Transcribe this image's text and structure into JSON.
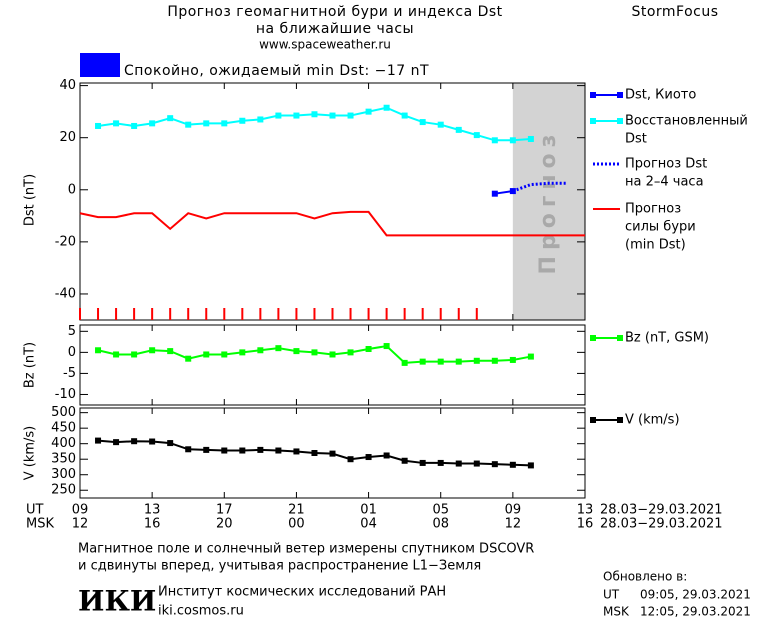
{
  "header": {
    "title_lines": [
      "Прогноз геомагнитной бури и индекса Dst",
      "на ближайшие часы"
    ],
    "site": "www.spaceweather.ru",
    "brand": "StormFocus"
  },
  "status": {
    "text": "Спокойно, ожидаемый min Dst: −17 nT",
    "color": "#0000ff"
  },
  "chart_data": [
    {
      "type": "line",
      "y_label": "Dst (nT)",
      "xlim": [
        0,
        28
      ],
      "ylim": [
        -50,
        41
      ],
      "yticks": [
        -40,
        -20,
        0,
        20,
        40
      ],
      "forecast_region": {
        "xlim": [
          24,
          28
        ],
        "label": "Прогноз",
        "color": "#d3d3d3"
      },
      "markers_x": [
        0,
        1,
        2,
        3,
        4,
        5,
        6,
        7,
        8,
        9,
        10,
        11,
        12,
        13,
        14,
        15,
        16,
        17,
        18,
        19,
        20,
        21,
        22
      ],
      "markers_color": "#ff0000",
      "series": [
        {
          "name": [
            "Dst, Киото"
          ],
          "color": "#0000ff",
          "marker": "square",
          "dash": "solid",
          "x": [
            23,
            24
          ],
          "values": [
            -1.5,
            -0.5
          ]
        },
        {
          "name": [
            "Восстановленный",
            "Dst"
          ],
          "color": "#00ffff",
          "marker": "square",
          "dash": "solid",
          "x": [
            1,
            2,
            3,
            4,
            5,
            6,
            7,
            8,
            9,
            10,
            11,
            12,
            13,
            14,
            15,
            16,
            17,
            18,
            19,
            20,
            21,
            22,
            23,
            24,
            25
          ],
          "values": [
            24.5,
            25.5,
            24.5,
            25.5,
            27.5,
            25,
            25.5,
            25.5,
            26.5,
            27,
            28.5,
            28.5,
            29,
            28.5,
            28.5,
            30,
            31.5,
            28.5,
            26,
            25,
            23,
            21,
            19,
            19,
            19.5
          ]
        },
        {
          "name": [
            "Прогноз Dst",
            "на 2–4 часа"
          ],
          "color": "#0000ff",
          "marker": "none",
          "dash": "dotted",
          "x": [
            24,
            25,
            26,
            27
          ],
          "values": [
            -0.5,
            2,
            2.5,
            2.5
          ]
        },
        {
          "name": [
            "Прогноз",
            "силы бури",
            "(min Dst)"
          ],
          "color": "#ff0000",
          "marker": "none",
          "dash": "solid",
          "x": [
            0,
            1,
            2,
            3,
            4,
            5,
            6,
            7,
            8,
            9,
            10,
            11,
            12,
            13,
            14,
            15,
            16,
            17,
            18,
            19,
            20,
            21,
            22,
            23,
            24,
            25,
            26,
            27,
            28
          ],
          "values": [
            -9,
            -10.5,
            -10.5,
            -9,
            -9,
            -15,
            -9,
            -11,
            -9,
            -9,
            -9,
            -9,
            -9,
            -11,
            -9,
            -8.5,
            -8.5,
            -17.5,
            -17.5,
            -17.5,
            -17.5,
            -17.5,
            -17.5,
            -17.5,
            -17.5,
            -17.5,
            -17.5,
            -17.5,
            -17.5
          ]
        }
      ]
    },
    {
      "type": "line",
      "y_label": "Bz (nT)",
      "xlim": [
        0,
        28
      ],
      "ylim": [
        -12.5,
        6.5
      ],
      "yticks": [
        -10,
        -5,
        0,
        5
      ],
      "series": [
        {
          "name": [
            "Bz (nT, GSM)"
          ],
          "color": "#00ff00",
          "marker": "square",
          "dash": "solid",
          "x": [
            1,
            2,
            3,
            4,
            5,
            6,
            7,
            8,
            9,
            10,
            11,
            12,
            13,
            14,
            15,
            16,
            17,
            18,
            19,
            20,
            21,
            22,
            23,
            24,
            25
          ],
          "values": [
            0.5,
            -0.5,
            -0.5,
            0.5,
            0.3,
            -1.5,
            -0.5,
            -0.5,
            0,
            0.5,
            1,
            0.3,
            0,
            -0.5,
            0,
            0.8,
            1.5,
            -2.5,
            -2.2,
            -2.2,
            -2.2,
            -2,
            -2,
            -1.8,
            -1
          ]
        }
      ]
    },
    {
      "type": "line",
      "y_label": "V (km/s)",
      "xlim": [
        0,
        28
      ],
      "ylim": [
        225,
        515
      ],
      "yticks": [
        250,
        300,
        350,
        400,
        450,
        500
      ],
      "x_label": "UT",
      "x2_label": "MSK",
      "xticks": [
        {
          "value": 0,
          "label": "09"
        },
        {
          "value": 4,
          "label": "13"
        },
        {
          "value": 8,
          "label": "17"
        },
        {
          "value": 12,
          "label": "21"
        },
        {
          "value": 16,
          "label": "01"
        },
        {
          "value": 20,
          "label": "05"
        },
        {
          "value": 24,
          "label": "09"
        },
        {
          "value": 28,
          "label": "13"
        }
      ],
      "x2ticklabels": [
        "12",
        "16",
        "20",
        "00",
        "04",
        "08",
        "12",
        "16"
      ],
      "x_range_label": "28.03−29.03.2021",
      "series": [
        {
          "name": [
            "V (km/s)"
          ],
          "color": "#000000",
          "marker": "square",
          "dash": "solid",
          "x": [
            1,
            2,
            3,
            4,
            5,
            6,
            7,
            8,
            9,
            10,
            11,
            12,
            13,
            14,
            15,
            16,
            17,
            18,
            19,
            20,
            21,
            22,
            23,
            24,
            25
          ],
          "values": [
            410,
            405,
            408,
            407,
            402,
            382,
            380,
            378,
            378,
            380,
            378,
            375,
            370,
            368,
            350,
            357,
            362,
            345,
            338,
            338,
            336,
            336,
            334,
            332,
            330
          ]
        }
      ]
    }
  ],
  "footer": {
    "note_lines": [
      "Магнитное поле и солнечный ветер измерены спутником DSCOVR",
      "и сдвинуты вперед, учитывая распространение L1−Земля"
    ],
    "logo": "ИКИ",
    "institute": "Институт космических исследований РАН",
    "url": "iki.cosmos.ru",
    "updated_title": "Обновлено в:",
    "updated": [
      [
        "UT",
        "09:05, 29.03.2021"
      ],
      [
        "MSK",
        "12:05, 29.03.2021"
      ]
    ]
  }
}
